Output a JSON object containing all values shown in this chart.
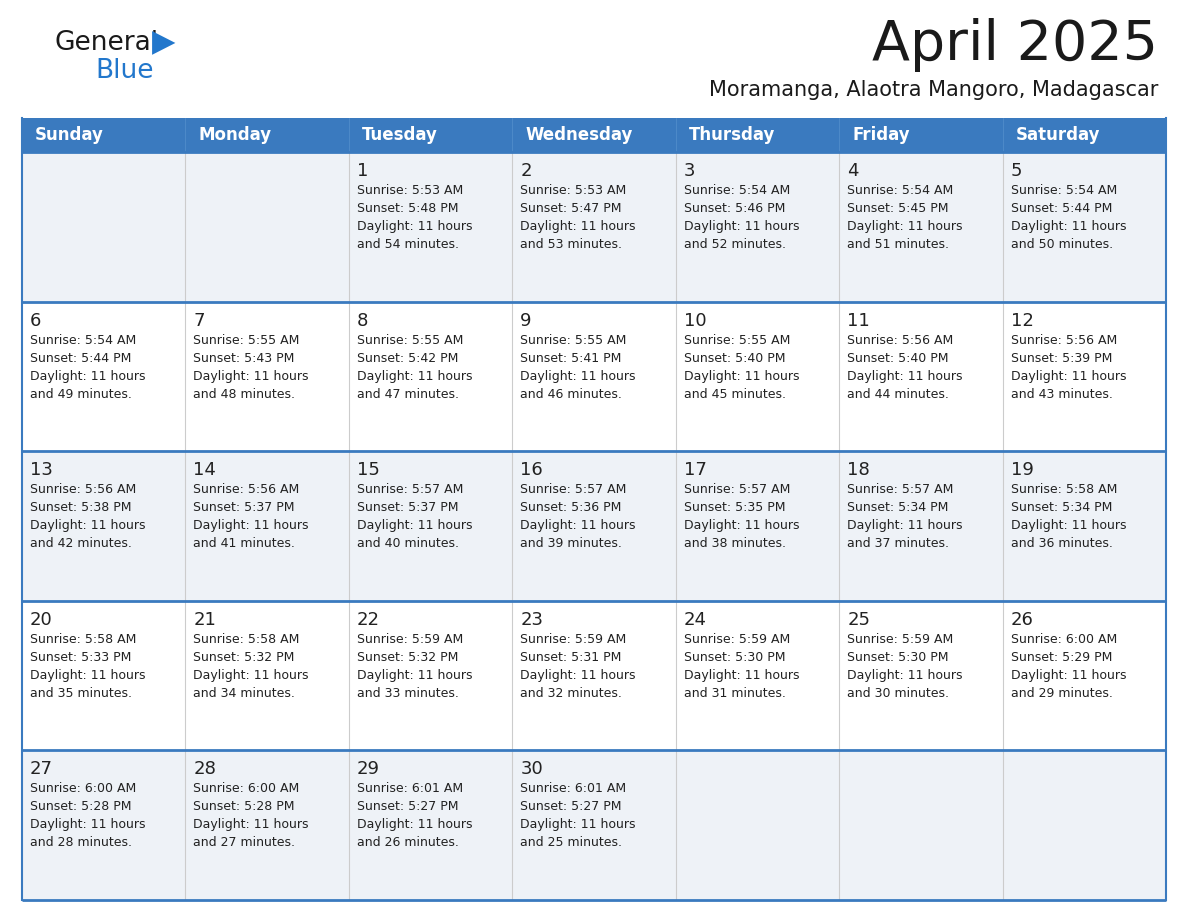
{
  "title": "April 2025",
  "subtitle": "Moramanga, Alaotra Mangoro, Madagascar",
  "days_of_week": [
    "Sunday",
    "Monday",
    "Tuesday",
    "Wednesday",
    "Thursday",
    "Friday",
    "Saturday"
  ],
  "header_bg": "#3a7abf",
  "header_text": "#ffffff",
  "row_bg_odd": "#eef2f7",
  "row_bg_even": "#ffffff",
  "border_color": "#3a7abf",
  "cell_border_color": "#bbbbbb",
  "text_color": "#222222",
  "calendar": [
    [
      {
        "day": "",
        "sunrise": "",
        "sunset": "",
        "daylight": ""
      },
      {
        "day": "",
        "sunrise": "",
        "sunset": "",
        "daylight": ""
      },
      {
        "day": "1",
        "sunrise": "Sunrise: 5:53 AM",
        "sunset": "Sunset: 5:48 PM",
        "daylight": "Daylight: 11 hours\nand 54 minutes."
      },
      {
        "day": "2",
        "sunrise": "Sunrise: 5:53 AM",
        "sunset": "Sunset: 5:47 PM",
        "daylight": "Daylight: 11 hours\nand 53 minutes."
      },
      {
        "day": "3",
        "sunrise": "Sunrise: 5:54 AM",
        "sunset": "Sunset: 5:46 PM",
        "daylight": "Daylight: 11 hours\nand 52 minutes."
      },
      {
        "day": "4",
        "sunrise": "Sunrise: 5:54 AM",
        "sunset": "Sunset: 5:45 PM",
        "daylight": "Daylight: 11 hours\nand 51 minutes."
      },
      {
        "day": "5",
        "sunrise": "Sunrise: 5:54 AM",
        "sunset": "Sunset: 5:44 PM",
        "daylight": "Daylight: 11 hours\nand 50 minutes."
      }
    ],
    [
      {
        "day": "6",
        "sunrise": "Sunrise: 5:54 AM",
        "sunset": "Sunset: 5:44 PM",
        "daylight": "Daylight: 11 hours\nand 49 minutes."
      },
      {
        "day": "7",
        "sunrise": "Sunrise: 5:55 AM",
        "sunset": "Sunset: 5:43 PM",
        "daylight": "Daylight: 11 hours\nand 48 minutes."
      },
      {
        "day": "8",
        "sunrise": "Sunrise: 5:55 AM",
        "sunset": "Sunset: 5:42 PM",
        "daylight": "Daylight: 11 hours\nand 47 minutes."
      },
      {
        "day": "9",
        "sunrise": "Sunrise: 5:55 AM",
        "sunset": "Sunset: 5:41 PM",
        "daylight": "Daylight: 11 hours\nand 46 minutes."
      },
      {
        "day": "10",
        "sunrise": "Sunrise: 5:55 AM",
        "sunset": "Sunset: 5:40 PM",
        "daylight": "Daylight: 11 hours\nand 45 minutes."
      },
      {
        "day": "11",
        "sunrise": "Sunrise: 5:56 AM",
        "sunset": "Sunset: 5:40 PM",
        "daylight": "Daylight: 11 hours\nand 44 minutes."
      },
      {
        "day": "12",
        "sunrise": "Sunrise: 5:56 AM",
        "sunset": "Sunset: 5:39 PM",
        "daylight": "Daylight: 11 hours\nand 43 minutes."
      }
    ],
    [
      {
        "day": "13",
        "sunrise": "Sunrise: 5:56 AM",
        "sunset": "Sunset: 5:38 PM",
        "daylight": "Daylight: 11 hours\nand 42 minutes."
      },
      {
        "day": "14",
        "sunrise": "Sunrise: 5:56 AM",
        "sunset": "Sunset: 5:37 PM",
        "daylight": "Daylight: 11 hours\nand 41 minutes."
      },
      {
        "day": "15",
        "sunrise": "Sunrise: 5:57 AM",
        "sunset": "Sunset: 5:37 PM",
        "daylight": "Daylight: 11 hours\nand 40 minutes."
      },
      {
        "day": "16",
        "sunrise": "Sunrise: 5:57 AM",
        "sunset": "Sunset: 5:36 PM",
        "daylight": "Daylight: 11 hours\nand 39 minutes."
      },
      {
        "day": "17",
        "sunrise": "Sunrise: 5:57 AM",
        "sunset": "Sunset: 5:35 PM",
        "daylight": "Daylight: 11 hours\nand 38 minutes."
      },
      {
        "day": "18",
        "sunrise": "Sunrise: 5:57 AM",
        "sunset": "Sunset: 5:34 PM",
        "daylight": "Daylight: 11 hours\nand 37 minutes."
      },
      {
        "day": "19",
        "sunrise": "Sunrise: 5:58 AM",
        "sunset": "Sunset: 5:34 PM",
        "daylight": "Daylight: 11 hours\nand 36 minutes."
      }
    ],
    [
      {
        "day": "20",
        "sunrise": "Sunrise: 5:58 AM",
        "sunset": "Sunset: 5:33 PM",
        "daylight": "Daylight: 11 hours\nand 35 minutes."
      },
      {
        "day": "21",
        "sunrise": "Sunrise: 5:58 AM",
        "sunset": "Sunset: 5:32 PM",
        "daylight": "Daylight: 11 hours\nand 34 minutes."
      },
      {
        "day": "22",
        "sunrise": "Sunrise: 5:59 AM",
        "sunset": "Sunset: 5:32 PM",
        "daylight": "Daylight: 11 hours\nand 33 minutes."
      },
      {
        "day": "23",
        "sunrise": "Sunrise: 5:59 AM",
        "sunset": "Sunset: 5:31 PM",
        "daylight": "Daylight: 11 hours\nand 32 minutes."
      },
      {
        "day": "24",
        "sunrise": "Sunrise: 5:59 AM",
        "sunset": "Sunset: 5:30 PM",
        "daylight": "Daylight: 11 hours\nand 31 minutes."
      },
      {
        "day": "25",
        "sunrise": "Sunrise: 5:59 AM",
        "sunset": "Sunset: 5:30 PM",
        "daylight": "Daylight: 11 hours\nand 30 minutes."
      },
      {
        "day": "26",
        "sunrise": "Sunrise: 6:00 AM",
        "sunset": "Sunset: 5:29 PM",
        "daylight": "Daylight: 11 hours\nand 29 minutes."
      }
    ],
    [
      {
        "day": "27",
        "sunrise": "Sunrise: 6:00 AM",
        "sunset": "Sunset: 5:28 PM",
        "daylight": "Daylight: 11 hours\nand 28 minutes."
      },
      {
        "day": "28",
        "sunrise": "Sunrise: 6:00 AM",
        "sunset": "Sunset: 5:28 PM",
        "daylight": "Daylight: 11 hours\nand 27 minutes."
      },
      {
        "day": "29",
        "sunrise": "Sunrise: 6:01 AM",
        "sunset": "Sunset: 5:27 PM",
        "daylight": "Daylight: 11 hours\nand 26 minutes."
      },
      {
        "day": "30",
        "sunrise": "Sunrise: 6:01 AM",
        "sunset": "Sunset: 5:27 PM",
        "daylight": "Daylight: 11 hours\nand 25 minutes."
      },
      {
        "day": "",
        "sunrise": "",
        "sunset": "",
        "daylight": ""
      },
      {
        "day": "",
        "sunrise": "",
        "sunset": "",
        "daylight": ""
      },
      {
        "day": "",
        "sunrise": "",
        "sunset": "",
        "daylight": ""
      }
    ]
  ],
  "logo_general_color": "#1a1a1a",
  "logo_blue_color": "#2277cc",
  "logo_triangle_color": "#2277cc",
  "title_color": "#1a1a1a",
  "subtitle_color": "#1a1a1a"
}
